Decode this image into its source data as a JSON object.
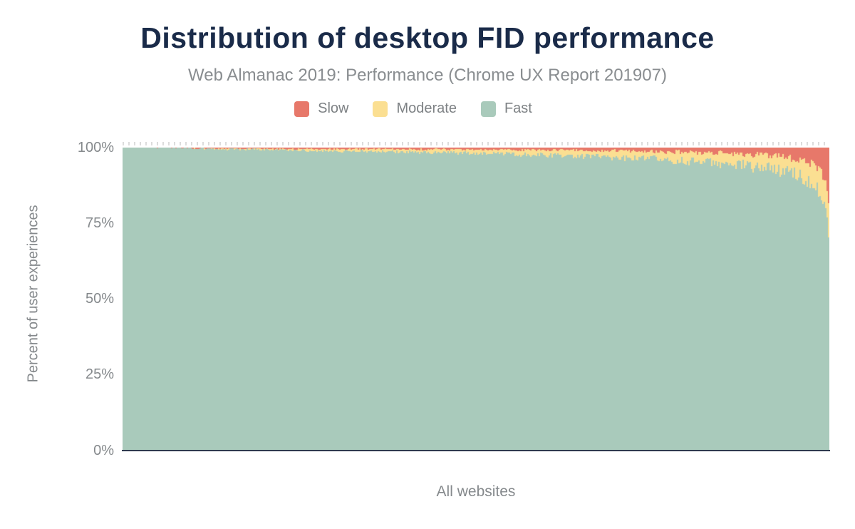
{
  "chart_data": {
    "type": "bar",
    "stacked": true,
    "normalized_to_100_percent": true,
    "title": "Distribution of desktop FID performance",
    "subtitle": "Web Almanac 2019: Performance (Chrome UX Report 201907)",
    "xlabel": "All websites",
    "ylabel": "Percent of user experiences",
    "ylim": [
      0,
      100
    ],
    "ytick_labels": [
      "0%",
      "25%",
      "50%",
      "75%",
      "100%"
    ],
    "grid": false,
    "legend_position": "top-center",
    "legend": [
      {
        "label": "Slow",
        "color": "#e7786a"
      },
      {
        "label": "Moderate",
        "color": "#fbdf92"
      },
      {
        "label": "Fast",
        "color": "#a9cabb"
      }
    ],
    "description": "Each thin vertical bar is one website, sorted left-to-right from highest to lowest share of Fast FID experiences; Fast stays near 100% for most sites, with Moderate and Slow shares growing sharply in the rightmost tail (final site: Fast ~69%, Moderate ~9%, Slow ~22%).",
    "n_bars": 496,
    "fast_profile": [
      [
        0,
        100
      ],
      [
        9,
        100
      ],
      [
        10.5,
        99.8
      ],
      [
        14,
        99.5
      ],
      [
        20,
        99.3
      ],
      [
        28,
        99.0
      ],
      [
        36,
        98.7
      ],
      [
        44,
        98.4
      ],
      [
        52,
        98.0
      ],
      [
        60,
        97.5
      ],
      [
        67,
        97.0
      ],
      [
        73,
        96.4
      ],
      [
        79,
        95.7
      ],
      [
        84,
        94.9
      ],
      [
        88,
        94.1
      ],
      [
        91,
        93.2
      ],
      [
        93.5,
        92.2
      ],
      [
        95.5,
        91.0
      ],
      [
        97,
        89.5
      ],
      [
        98.2,
        87.5
      ],
      [
        99,
        85
      ],
      [
        99.5,
        81
      ],
      [
        99.8,
        76
      ],
      [
        100,
        69.5
      ]
    ],
    "slow_profile": [
      [
        0,
        0
      ],
      [
        9,
        0.08
      ],
      [
        10.5,
        0.3
      ],
      [
        14,
        0.35
      ],
      [
        20,
        0.4
      ],
      [
        28,
        0.45
      ],
      [
        36,
        0.5
      ],
      [
        44,
        0.6
      ],
      [
        52,
        0.7
      ],
      [
        60,
        0.85
      ],
      [
        67,
        1.0
      ],
      [
        73,
        1.2
      ],
      [
        79,
        1.45
      ],
      [
        84,
        1.75
      ],
      [
        88,
        2.1
      ],
      [
        91,
        2.6
      ],
      [
        93.5,
        3.1
      ],
      [
        95.5,
        3.8
      ],
      [
        97,
        4.8
      ],
      [
        98.2,
        6.2
      ],
      [
        99,
        8.5
      ],
      [
        99.5,
        12
      ],
      [
        99.8,
        16.5
      ],
      [
        100,
        21.5
      ]
    ],
    "jitter": {
      "fast_base": 0.45,
      "fast_gain": 2.5,
      "slow_base": 0.25,
      "slow_gain": 1.2,
      "seed": 1337
    },
    "colors": {
      "title_text": "#1a2b49",
      "muted_text": "#85898c",
      "axis_line": "#2e3a4e",
      "top_tick_marks": "#dcdcdc",
      "background": "#ffffff"
    }
  }
}
